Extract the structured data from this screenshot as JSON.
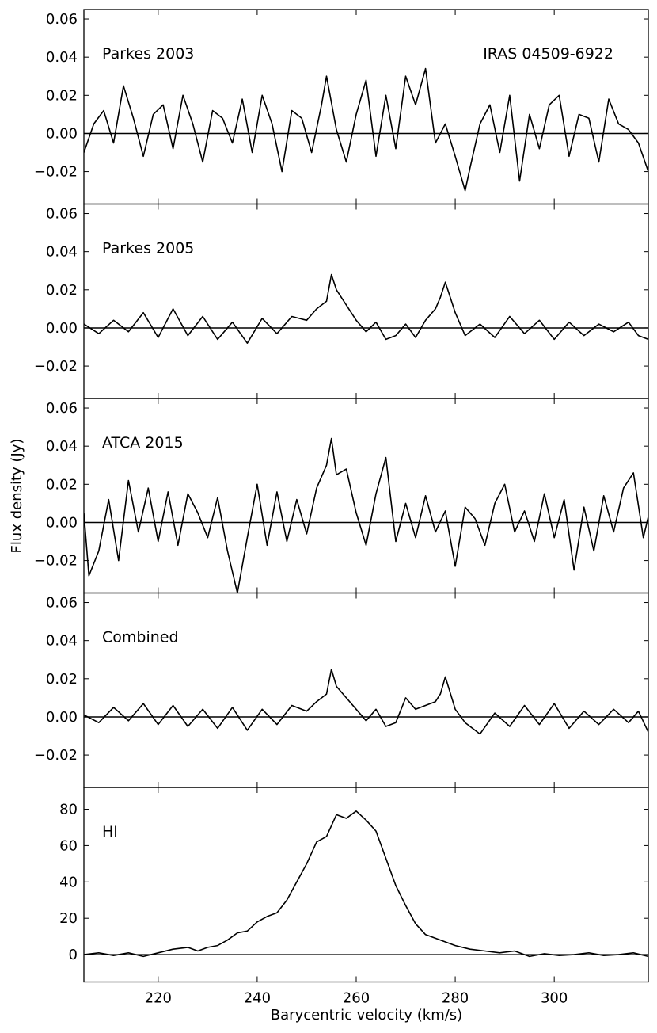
{
  "chart_data": {
    "type": "line",
    "xlabel": "Barycentric velocity (km/s)",
    "ylabel": "Flux density (Jy)",
    "xlim": [
      205,
      319
    ],
    "x_ticks": [
      220,
      240,
      260,
      280,
      300
    ],
    "annotation": "IRAS 04509-6922",
    "panels": [
      {
        "label": "Parkes 2003",
        "ylim": [
          -0.037,
          0.065
        ],
        "y_ticks": [
          -0.02,
          0.0,
          0.02,
          0.04,
          0.06
        ],
        "y_tick_labels": [
          "−0.02",
          "0.00",
          "0.02",
          "0.04",
          "0.06"
        ],
        "x": [
          205,
          207,
          209,
          211,
          213,
          215,
          217,
          219,
          221,
          223,
          225,
          227,
          229,
          231,
          233,
          235,
          237,
          239,
          241,
          243,
          245,
          247,
          249,
          251,
          253,
          254,
          256,
          258,
          260,
          262,
          264,
          266,
          268,
          270,
          272,
          274,
          276,
          278,
          280,
          282,
          283,
          285,
          287,
          289,
          291,
          293,
          295,
          297,
          299,
          301,
          303,
          305,
          307,
          309,
          311,
          313,
          315,
          317,
          319
        ],
        "y": [
          -0.01,
          0.005,
          0.012,
          -0.005,
          0.025,
          0.008,
          -0.012,
          0.01,
          0.015,
          -0.008,
          0.02,
          0.005,
          -0.015,
          0.012,
          0.008,
          -0.005,
          0.018,
          -0.01,
          0.02,
          0.005,
          -0.02,
          0.012,
          0.008,
          -0.01,
          0.015,
          0.03,
          0.002,
          -0.015,
          0.01,
          0.028,
          -0.012,
          0.02,
          -0.008,
          0.03,
          0.015,
          0.034,
          -0.005,
          0.005,
          -0.012,
          -0.03,
          -0.018,
          0.005,
          0.015,
          -0.01,
          0.02,
          -0.025,
          0.01,
          -0.008,
          0.015,
          0.02,
          -0.012,
          0.01,
          0.008,
          -0.015,
          0.018,
          0.005,
          0.002,
          -0.005,
          -0.02
        ]
      },
      {
        "label": "Parkes 2005",
        "ylim": [
          -0.037,
          0.065
        ],
        "y_ticks": [
          -0.02,
          0.0,
          0.02,
          0.04,
          0.06
        ],
        "y_tick_labels": [
          "−0.02",
          "0.00",
          "0.02",
          "0.04",
          "0.06"
        ],
        "x": [
          205,
          208,
          211,
          214,
          217,
          220,
          223,
          226,
          229,
          232,
          235,
          238,
          241,
          244,
          247,
          250,
          252,
          254,
          255,
          256,
          258,
          260,
          262,
          264,
          266,
          268,
          270,
          272,
          274,
          276,
          277,
          278,
          280,
          282,
          285,
          288,
          291,
          294,
          297,
          300,
          303,
          306,
          309,
          312,
          315,
          317,
          319
        ],
        "y": [
          0.002,
          -0.003,
          0.004,
          -0.002,
          0.008,
          -0.005,
          0.01,
          -0.004,
          0.006,
          -0.006,
          0.003,
          -0.008,
          0.005,
          -0.003,
          0.006,
          0.004,
          0.01,
          0.014,
          0.028,
          0.02,
          0.012,
          0.004,
          -0.002,
          0.003,
          -0.006,
          -0.004,
          0.002,
          -0.005,
          0.004,
          0.01,
          0.016,
          0.024,
          0.008,
          -0.004,
          0.002,
          -0.005,
          0.006,
          -0.003,
          0.004,
          -0.006,
          0.003,
          -0.004,
          0.002,
          -0.002,
          0.003,
          -0.004,
          -0.006
        ]
      },
      {
        "label": "ATCA 2015",
        "ylim": [
          -0.037,
          0.065
        ],
        "y_ticks": [
          -0.02,
          0.0,
          0.02,
          0.04,
          0.06
        ],
        "y_tick_labels": [
          "−0.02",
          "0.00",
          "0.02",
          "0.04",
          "0.06"
        ],
        "x": [
          205,
          206,
          208,
          210,
          212,
          214,
          216,
          218,
          220,
          222,
          224,
          226,
          228,
          230,
          232,
          234,
          236,
          238,
          240,
          242,
          244,
          246,
          248,
          250,
          252,
          254,
          255,
          256,
          258,
          260,
          262,
          264,
          266,
          268,
          270,
          272,
          274,
          276,
          278,
          280,
          282,
          284,
          286,
          288,
          290,
          292,
          294,
          296,
          298,
          300,
          302,
          304,
          306,
          308,
          310,
          312,
          314,
          316,
          318,
          319
        ],
        "y": [
          0.005,
          -0.028,
          -0.015,
          0.012,
          -0.02,
          0.022,
          -0.005,
          0.018,
          -0.01,
          0.016,
          -0.012,
          0.015,
          0.005,
          -0.008,
          0.013,
          -0.015,
          -0.037,
          -0.008,
          0.02,
          -0.012,
          0.016,
          -0.01,
          0.012,
          -0.006,
          0.018,
          0.03,
          0.044,
          0.025,
          0.028,
          0.005,
          -0.012,
          0.015,
          0.034,
          -0.01,
          0.01,
          -0.008,
          0.014,
          -0.005,
          0.006,
          -0.023,
          0.008,
          0.002,
          -0.012,
          0.01,
          0.02,
          -0.005,
          0.006,
          -0.01,
          0.015,
          -0.008,
          0.012,
          -0.025,
          0.008,
          -0.015,
          0.014,
          -0.005,
          0.018,
          0.026,
          -0.008,
          0.003
        ]
      },
      {
        "label": "Combined",
        "ylim": [
          -0.037,
          0.065
        ],
        "y_ticks": [
          -0.02,
          0.0,
          0.02,
          0.04,
          0.06
        ],
        "y_tick_labels": [
          "−0.02",
          "0.00",
          "0.02",
          "0.04",
          "0.06"
        ],
        "x": [
          205,
          208,
          211,
          214,
          217,
          220,
          223,
          226,
          229,
          232,
          235,
          238,
          241,
          244,
          247,
          250,
          252,
          254,
          255,
          256,
          258,
          260,
          262,
          264,
          266,
          268,
          270,
          272,
          274,
          276,
          277,
          278,
          280,
          282,
          285,
          288,
          291,
          294,
          297,
          300,
          303,
          306,
          309,
          312,
          315,
          317,
          319
        ],
        "y": [
          0.001,
          -0.003,
          0.005,
          -0.002,
          0.007,
          -0.004,
          0.006,
          -0.005,
          0.004,
          -0.006,
          0.005,
          -0.007,
          0.004,
          -0.004,
          0.006,
          0.003,
          0.008,
          0.012,
          0.025,
          0.016,
          0.01,
          0.004,
          -0.002,
          0.004,
          -0.005,
          -0.003,
          0.01,
          0.004,
          0.006,
          0.008,
          0.012,
          0.021,
          0.004,
          -0.003,
          -0.009,
          0.002,
          -0.005,
          0.006,
          -0.004,
          0.007,
          -0.006,
          0.003,
          -0.004,
          0.004,
          -0.003,
          0.003,
          -0.008
        ]
      },
      {
        "label": "HI",
        "ylim": [
          -15,
          92
        ],
        "y_ticks": [
          0,
          20,
          40,
          60,
          80
        ],
        "y_tick_labels": [
          "0",
          "20",
          "40",
          "60",
          "80"
        ],
        "x": [
          205,
          208,
          211,
          214,
          217,
          220,
          223,
          226,
          228,
          230,
          232,
          234,
          236,
          238,
          240,
          242,
          244,
          246,
          248,
          250,
          252,
          254,
          256,
          258,
          260,
          262,
          264,
          266,
          268,
          270,
          272,
          274,
          276,
          278,
          280,
          283,
          286,
          289,
          292,
          295,
          298,
          301,
          304,
          307,
          310,
          313,
          316,
          319
        ],
        "y": [
          0,
          1,
          -0.5,
          1,
          -1,
          1,
          3,
          4,
          2,
          4,
          5,
          8,
          12,
          13,
          18,
          21,
          23,
          30,
          40,
          50,
          62,
          65,
          77,
          75,
          79,
          74,
          68,
          53,
          38,
          27,
          17,
          11,
          9,
          7,
          5,
          3,
          2,
          1,
          2,
          -1,
          0.5,
          -0.5,
          0,
          1,
          -0.5,
          0,
          1,
          -1
        ]
      }
    ]
  }
}
